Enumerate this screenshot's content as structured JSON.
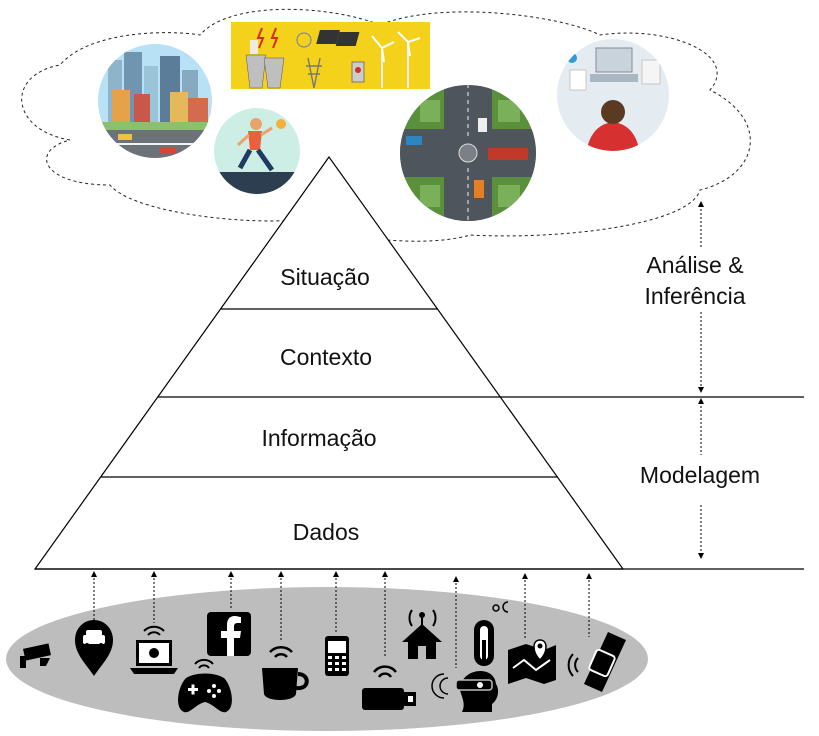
{
  "pyramid": {
    "levels": [
      {
        "label": "Situação"
      },
      {
        "label": "Contexto"
      },
      {
        "label": "Informação"
      },
      {
        "label": "Dados"
      }
    ]
  },
  "side_labels": {
    "analysis_line1": "Análise &",
    "analysis_line2": "Inferência",
    "modeling": "Modelagem"
  },
  "cloud_images": [
    "city-skyline-icon",
    "energy-grid-icon",
    "runner-icon",
    "intersection-traffic-icon",
    "desk-workspace-icon"
  ],
  "sensor_icons": [
    "cctv-camera-icon",
    "car-location-pin-icon",
    "laptop-wifi-icon",
    "facebook-icon",
    "gamepad-icon",
    "coffee-cup-wifi-icon",
    "mobile-phone-icon",
    "usb-wifi-dongle-icon",
    "smart-home-icon",
    "thermometer-icon",
    "vr-headset-user-icon",
    "map-route-icon",
    "smartwatch-icon"
  ],
  "colors": {
    "ellipse": "#bdbdbd",
    "line": "#000000",
    "yellow_panel": "#f4d21c",
    "runner": "#e8603c",
    "city_sky": "#b9e1f5",
    "desk": "#e4ecf2"
  }
}
